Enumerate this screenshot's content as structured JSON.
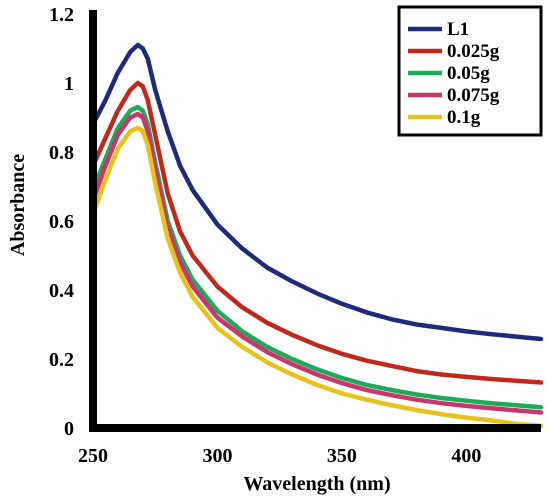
{
  "chart_data": {
    "type": "line",
    "title": "",
    "xlabel": "Wavelength (nm)",
    "ylabel": "Absorbance",
    "xlim": [
      250,
      430
    ],
    "ylim": [
      0,
      1.2
    ],
    "xticks": [
      250,
      300,
      350,
      400
    ],
    "xtick_labels": [
      "250",
      "300",
      "350",
      "400"
    ],
    "yticks": [
      0,
      0.2,
      0.4,
      0.6,
      0.8,
      1.0,
      1.2
    ],
    "ytick_labels": [
      "0",
      "0.2",
      "0.4",
      "0.6",
      "0.8",
      "1",
      "1.2"
    ],
    "grid": false,
    "legend_position": "top-right",
    "x": [
      250,
      255,
      260,
      265,
      268,
      270,
      272,
      275,
      280,
      285,
      290,
      300,
      310,
      320,
      330,
      340,
      350,
      360,
      370,
      380,
      390,
      400,
      410,
      420,
      430
    ],
    "series": [
      {
        "name": "L1",
        "color": "#1e2b7a",
        "values": [
          0.88,
          0.95,
          1.03,
          1.09,
          1.11,
          1.1,
          1.07,
          0.98,
          0.86,
          0.76,
          0.69,
          0.59,
          0.52,
          0.465,
          0.425,
          0.39,
          0.36,
          0.335,
          0.315,
          0.3,
          0.29,
          0.28,
          0.272,
          0.265,
          0.258
        ]
      },
      {
        "name": "0.025g",
        "color": "#c0281c",
        "values": [
          0.76,
          0.84,
          0.92,
          0.98,
          1.0,
          0.99,
          0.95,
          0.85,
          0.68,
          0.57,
          0.5,
          0.41,
          0.35,
          0.305,
          0.27,
          0.24,
          0.215,
          0.195,
          0.18,
          0.165,
          0.155,
          0.148,
          0.142,
          0.137,
          0.132
        ]
      },
      {
        "name": "0.05g",
        "color": "#1faa5a",
        "values": [
          0.69,
          0.78,
          0.87,
          0.92,
          0.93,
          0.92,
          0.88,
          0.77,
          0.6,
          0.5,
          0.43,
          0.34,
          0.28,
          0.235,
          0.2,
          0.17,
          0.145,
          0.125,
          0.11,
          0.097,
          0.087,
          0.079,
          0.072,
          0.066,
          0.06
        ]
      },
      {
        "name": "0.075g",
        "color": "#c8366e",
        "values": [
          0.66,
          0.76,
          0.85,
          0.9,
          0.91,
          0.9,
          0.86,
          0.75,
          0.58,
          0.48,
          0.41,
          0.32,
          0.265,
          0.22,
          0.185,
          0.155,
          0.13,
          0.11,
          0.095,
          0.082,
          0.072,
          0.064,
          0.057,
          0.051,
          0.045
        ]
      },
      {
        "name": "0.1g",
        "color": "#e6c21a",
        "values": [
          0.62,
          0.72,
          0.81,
          0.86,
          0.87,
          0.86,
          0.82,
          0.71,
          0.55,
          0.45,
          0.38,
          0.29,
          0.235,
          0.19,
          0.155,
          0.125,
          0.1,
          0.082,
          0.066,
          0.052,
          0.04,
          0.03,
          0.022,
          0.012,
          0.006
        ]
      }
    ]
  }
}
